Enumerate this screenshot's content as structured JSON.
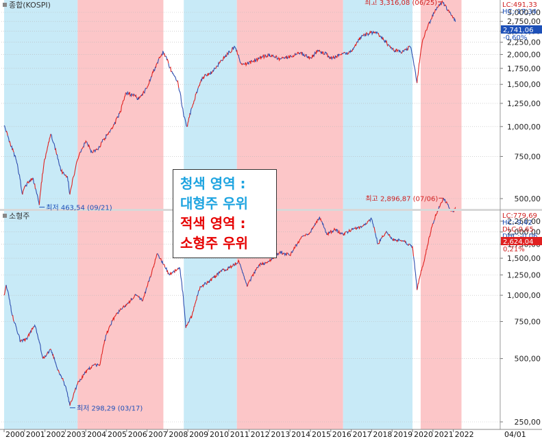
{
  "chart_data": [
    {
      "type": "line",
      "title": "종합(KOSPI)",
      "ylim": [
        420,
        3450
      ],
      "yticks": [
        500,
        750,
        1000,
        1250,
        1500,
        1750,
        2000,
        2250,
        2500,
        2750,
        3000
      ],
      "ytick_labels": [
        "500,00",
        "750,00",
        "1,000,00",
        "1,250,00",
        "1,500,00",
        "1,750,00",
        "2,000,00",
        "2,250,00",
        "2,500,00",
        "2,750,00",
        "3,000,00"
      ],
      "series": [
        {
          "x": [
            2000.0,
            2000.3,
            2000.6,
            2000.9,
            2001.0,
            2001.4,
            2001.72,
            2001.95,
            2002.3,
            2002.55,
            2002.8,
            2003.1,
            2003.22,
            2003.6,
            2004.0,
            2004.3,
            2004.6,
            2004.9,
            2005.3,
            2005.7,
            2005.95,
            2006.4,
            2006.6,
            2007.0,
            2007.5,
            2007.8,
            2008.2,
            2008.5,
            2008.8,
            2008.95,
            2009.3,
            2009.7,
            2010.2,
            2010.8,
            2011.3,
            2011.6,
            2011.9,
            2012.5,
            2013.0,
            2013.5,
            2014.0,
            2014.5,
            2015.0,
            2015.4,
            2015.8,
            2016.0,
            2016.5,
            2017.0,
            2017.5,
            2017.9,
            2018.2,
            2018.6,
            2019.0,
            2019.5,
            2019.9,
            2020.22,
            2020.5,
            2020.9,
            2021.2,
            2021.48,
            2021.8,
            2022.0,
            2022.1
          ],
          "y": [
            1010,
            850,
            720,
            520,
            560,
            610,
            470,
            700,
            930,
            780,
            650,
            620,
            520,
            730,
            870,
            780,
            800,
            890,
            980,
            1150,
            1380,
            1350,
            1300,
            1450,
            1850,
            2050,
            1700,
            1550,
            1100,
            1000,
            1280,
            1600,
            1690,
            1960,
            2150,
            1830,
            1830,
            1930,
            2000,
            1920,
            1960,
            2030,
            1940,
            2080,
            2000,
            1930,
            2000,
            2050,
            2380,
            2450,
            2490,
            2300,
            2100,
            2050,
            2150,
            1520,
            2300,
            2800,
            3150,
            3316.08,
            3000,
            2850,
            2741.06
          ]
        }
      ],
      "annotations": {
        "high": "최고 3,316,08 (06/25)",
        "low": "최저 463,54 (09/21)",
        "lc": "LC:491,33",
        "hc": "HC:-17,34",
        "current": "2,741,06",
        "change": "-0,60%"
      }
    },
    {
      "type": "line",
      "title": "소형주",
      "ylim": [
        180,
        3000
      ],
      "yticks": [
        250,
        500,
        750,
        1000,
        1250,
        1500,
        1750,
        2000,
        2250
      ],
      "ytick_labels": [
        "250,00",
        "500,00",
        "750,00",
        "1,000,00",
        "1,250,00",
        "1,500,00",
        "1,750,00",
        "2,000,00",
        "2,250,00"
      ],
      "series": [
        {
          "x": [
            2000.0,
            2000.1,
            2000.4,
            2000.8,
            2001.1,
            2001.5,
            2001.9,
            2002.3,
            2002.6,
            2003.0,
            2003.22,
            2003.6,
            2003.9,
            2004.3,
            2004.7,
            2005.0,
            2005.5,
            2006.0,
            2006.4,
            2006.8,
            2007.2,
            2007.5,
            2007.8,
            2008.1,
            2008.6,
            2008.9,
            2009.2,
            2009.6,
            2010.0,
            2010.6,
            2011.0,
            2011.5,
            2011.9,
            2012.5,
            2013.0,
            2013.5,
            2014.0,
            2014.5,
            2015.0,
            2015.45,
            2015.8,
            2016.2,
            2016.6,
            2017.0,
            2017.5,
            2018.0,
            2018.3,
            2018.7,
            2019.0,
            2019.6,
            2020.0,
            2020.22,
            2020.6,
            2021.0,
            2021.4,
            2021.52,
            2021.8,
            2022.0,
            2022.1
          ],
          "y": [
            1000,
            1120,
            800,
            600,
            620,
            720,
            500,
            550,
            450,
            370,
            298.29,
            380,
            420,
            460,
            470,
            650,
            820,
            900,
            1000,
            950,
            1250,
            1580,
            1400,
            1250,
            1350,
            700,
            800,
            1100,
            1150,
            1300,
            1350,
            1450,
            1100,
            1400,
            1450,
            1600,
            1550,
            1850,
            2000,
            2350,
            1950,
            2050,
            1950,
            2050,
            2100,
            2300,
            1750,
            2000,
            1850,
            1800,
            1700,
            1060,
            1500,
            2200,
            2750,
            2896.87,
            2600,
            2500,
            2624.04
          ]
        }
      ],
      "annotations": {
        "high": "최고 2,896,87 (07/06)",
        "low": "최저 298,29 (03/17)",
        "lc": "LC:779,69",
        "hc": "HC:-9,42",
        "dlc": "DLC:0,65",
        "dhc": "DHC:-0,06",
        "current": "2,624,04",
        "change": "0,21%"
      }
    }
  ],
  "regions": [
    {
      "type": "blue",
      "start": 2000.0,
      "end": 2003.6
    },
    {
      "type": "red",
      "start": 2003.6,
      "end": 2007.8
    },
    {
      "type": "blue",
      "start": 2008.8,
      "end": 2011.4
    },
    {
      "type": "red",
      "start": 2011.4,
      "end": 2016.6
    },
    {
      "type": "blue",
      "start": 2016.6,
      "end": 2020.0
    },
    {
      "type": "red",
      "start": 2020.4,
      "end": 2022.4
    }
  ],
  "region_colors": {
    "blue": "#c8eaf7",
    "red": "#fcc6c8"
  },
  "x_axis": {
    "range": [
      2000.0,
      2025.5
    ],
    "ticks": [
      2000,
      2001,
      2002,
      2003,
      2004,
      2005,
      2006,
      2007,
      2008,
      2009,
      2010,
      2011,
      2012,
      2013,
      2014,
      2015,
      2016,
      2017,
      2018,
      2019,
      2020,
      2021,
      2022
    ],
    "labels": [
      "2000",
      "2001",
      "2002",
      "2003",
      "2004",
      "2005",
      "2006",
      "2007",
      "2008",
      "2009",
      "2010",
      "2011",
      "2012",
      "2013",
      "2014",
      "2015",
      "2016",
      "2017",
      "2018",
      "2019",
      "2020",
      "2021",
      "2022"
    ],
    "end_label": "04/01"
  },
  "legend": {
    "line1": "청색 영역 :",
    "line2": "대형주 우위",
    "line3": "적색 영역 :",
    "line4": "소형주 우위",
    "blue_text_color": "#1ea4e0",
    "red_text_color": "#e60000"
  },
  "colors": {
    "series_up": "#e0201e",
    "series_down": "#2f4fb0",
    "label_box": "#1d50b8",
    "label_box_red": "#e02020"
  }
}
